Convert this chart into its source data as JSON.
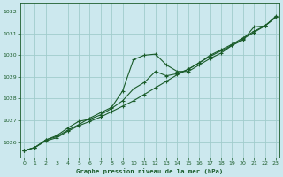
{
  "title": "Graphe pression niveau de la mer (hPa)",
  "background_color": "#cce8ee",
  "grid_color": "#a0cccc",
  "line_color": "#1a5c2a",
  "xlim": [
    -0.3,
    23.3
  ],
  "ylim": [
    1025.3,
    1032.4
  ],
  "yticks": [
    1026,
    1027,
    1028,
    1029,
    1030,
    1031,
    1032
  ],
  "xticks": [
    0,
    1,
    2,
    3,
    4,
    5,
    6,
    7,
    8,
    9,
    10,
    11,
    12,
    13,
    14,
    15,
    16,
    17,
    18,
    19,
    20,
    21,
    22,
    23
  ],
  "series1_x": [
    0,
    1,
    2,
    3,
    4,
    5,
    6,
    7,
    8,
    9,
    10,
    11,
    12,
    13,
    14,
    15,
    16,
    17,
    18,
    19,
    20,
    21,
    22,
    23
  ],
  "series1_y": [
    1025.6,
    1025.75,
    1026.1,
    1026.25,
    1026.55,
    1026.8,
    1027.1,
    1027.35,
    1027.6,
    1028.35,
    1029.8,
    1030.0,
    1030.05,
    1029.55,
    1029.25,
    1029.25,
    1029.55,
    1029.85,
    1030.1,
    1030.45,
    1030.7,
    1031.3,
    1031.35,
    1031.75
  ],
  "series2_x": [
    0,
    1,
    2,
    3,
    4,
    5,
    6,
    7,
    8,
    9,
    10,
    11,
    12,
    13,
    14,
    15,
    16,
    17,
    18,
    19,
    20,
    21,
    22,
    23
  ],
  "series2_y": [
    1025.6,
    1025.75,
    1026.1,
    1026.3,
    1026.65,
    1026.95,
    1027.05,
    1027.25,
    1027.55,
    1027.9,
    1028.45,
    1028.75,
    1029.25,
    1029.05,
    1029.15,
    1029.35,
    1029.65,
    1030.0,
    1030.25,
    1030.5,
    1030.8,
    1031.1,
    1031.35,
    1031.75
  ],
  "series3_x": [
    0,
    1,
    2,
    3,
    4,
    5,
    6,
    7,
    8,
    9,
    10,
    11,
    12,
    13,
    14,
    15,
    16,
    17,
    18,
    19,
    20,
    21,
    22,
    23
  ],
  "series3_y": [
    1025.6,
    1025.75,
    1026.05,
    1026.2,
    1026.5,
    1026.75,
    1026.95,
    1027.15,
    1027.4,
    1027.65,
    1027.9,
    1028.2,
    1028.5,
    1028.8,
    1029.1,
    1029.35,
    1029.65,
    1029.95,
    1030.2,
    1030.45,
    1030.75,
    1031.05,
    1031.35,
    1031.8
  ]
}
